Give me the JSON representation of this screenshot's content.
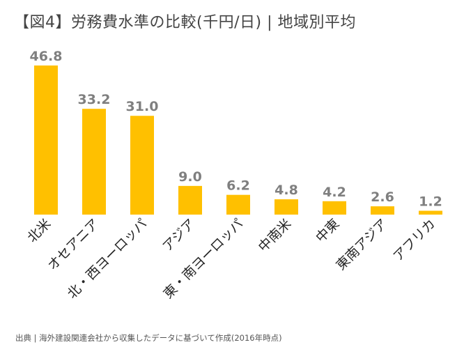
{
  "title": "【図4】労務費水準の比較(千円/日) | 地域別平均",
  "source": "出典 | 海外建設関連会社から収集したデータに基づいて作成(2016年時点)",
  "colors": {
    "bar": "#FFC000",
    "value_label": "#7F7F7F",
    "category_label": "#262626",
    "baseline": "#D9D9D9"
  },
  "chart_data": {
    "type": "bar",
    "title": "【図4】労務費水準の比較(千円/日) | 地域別平均",
    "xlabel": "",
    "ylabel": "",
    "ylim": [
      0,
      46.8
    ],
    "grid": false,
    "categories": [
      "北米",
      "オセアニア",
      "北・西ヨーロッパ",
      "アジア",
      "東・南ヨーロッパ",
      "中南米",
      "中東",
      "東南アジア",
      "アフリカ"
    ],
    "values": [
      46.8,
      33.2,
      31.0,
      9.0,
      6.2,
      4.8,
      4.2,
      2.6,
      1.2
    ],
    "value_labels": [
      "46.8",
      "33.2",
      "31.0",
      "9.0",
      "6.2",
      "4.8",
      "4.2",
      "2.6",
      "1.2"
    ]
  }
}
